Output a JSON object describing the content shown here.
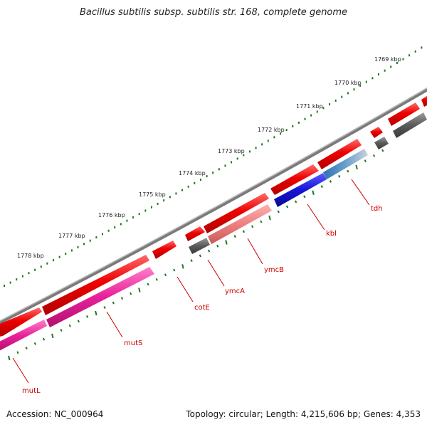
{
  "title": "Bacillus subtilis subsp. subtilis str. 168, complete genome",
  "footer": {
    "accession": "Accession: NC_000964",
    "summary": "Topology: circular; Length: 4,215,606 bp; Genes: 4,353"
  },
  "ticks": [
    {
      "label": "1769 kbp",
      "pos_kbp": 1769
    },
    {
      "label": "1770 kbp",
      "pos_kbp": 1770
    },
    {
      "label": "1771 kbp",
      "pos_kbp": 1771
    },
    {
      "label": "1772 kbp",
      "pos_kbp": 1772
    },
    {
      "label": "1773 kbp",
      "pos_kbp": 1773
    },
    {
      "label": "1774 kbp",
      "pos_kbp": 1774
    },
    {
      "label": "1775 kbp",
      "pos_kbp": 1775
    },
    {
      "label": "1776 kbp",
      "pos_kbp": 1776
    },
    {
      "label": "1777 kbp",
      "pos_kbp": 1777
    },
    {
      "label": "1778 kbp",
      "pos_kbp": 1778
    }
  ],
  "genes": [
    {
      "name": "tdh"
    },
    {
      "name": "kbl"
    },
    {
      "name": "ymcB"
    },
    {
      "name": "ymcA"
    },
    {
      "name": "cotE"
    },
    {
      "name": "mutS"
    },
    {
      "name": "mutL"
    }
  ],
  "colors": {
    "cds_forward": "#ee0000",
    "cds_dark": "#555555",
    "gene_mutS": "#e8209a",
    "gene_kbl": "#1515d8",
    "gene_tdh": "#4a86bb",
    "gene_ymcB": "#ee8080",
    "backbone": "#777777",
    "tick": "#1d7a1d",
    "label": "#cc0000"
  }
}
